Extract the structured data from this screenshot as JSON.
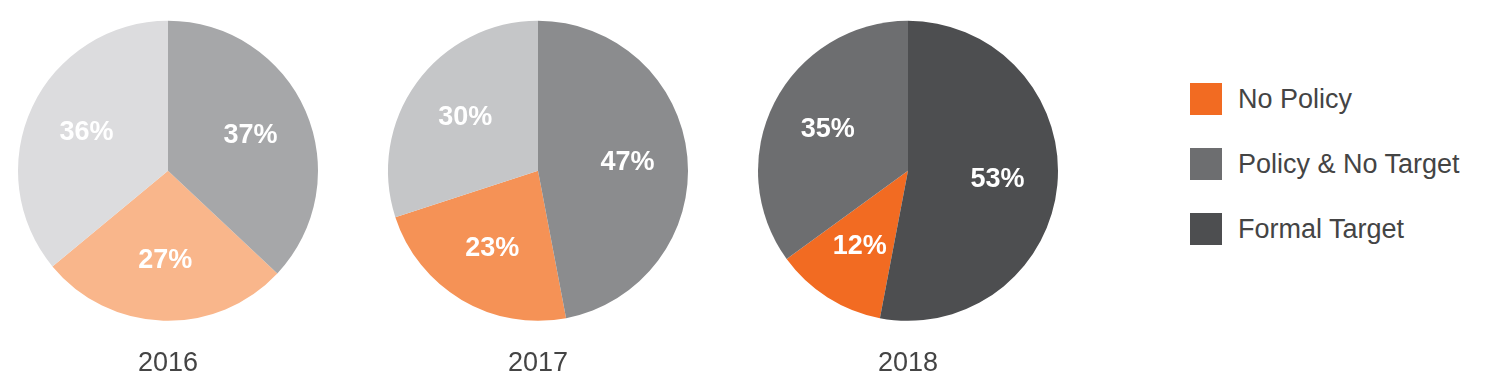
{
  "chart_data": [
    {
      "type": "pie",
      "title": "2016",
      "categories": [
        "No Policy",
        "Policy & No Target",
        "Formal Target"
      ],
      "values": [
        27,
        36,
        37
      ],
      "value_labels": [
        "27%",
        "36%",
        "37%"
      ],
      "colors": [
        "#f9b68b",
        "#dcdcde",
        "#a6a7a9"
      ],
      "data_labels": true
    },
    {
      "type": "pie",
      "title": "2017",
      "categories": [
        "No Policy",
        "Policy & No Target",
        "Formal Target"
      ],
      "values": [
        23,
        30,
        47
      ],
      "value_labels": [
        "23%",
        "30%",
        "47%"
      ],
      "colors": [
        "#f59256",
        "#c5c6c8",
        "#8b8c8e"
      ],
      "data_labels": true
    },
    {
      "type": "pie",
      "title": "2018",
      "categories": [
        "No Policy",
        "Policy & No Target",
        "Formal Target"
      ],
      "values": [
        12,
        35,
        53
      ],
      "value_labels": [
        "12%",
        "35%",
        "53%"
      ],
      "colors": [
        "#f26b22",
        "#6d6e70",
        "#4d4e50"
      ],
      "data_labels": true,
      "legend": "right"
    }
  ]
}
